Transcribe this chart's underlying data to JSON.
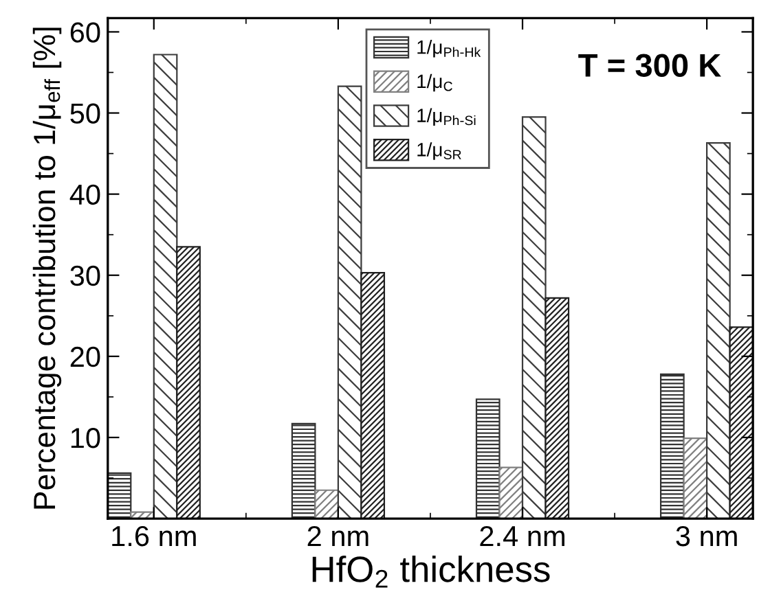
{
  "chart_data": {
    "type": "bar",
    "xlabel": "HfO$_{2}$ thickness",
    "ylabel": "Percentage contribution to 1/μ$_{eff}$ [%]",
    "categories": [
      "1.6 nm",
      "2 nm",
      "2.4 nm",
      "3 nm"
    ],
    "series": [
      {
        "name": "1/μ$_{Ph-Hk}$",
        "color": "#333333",
        "values": [
          5.6,
          11.7,
          14.7,
          17.8
        ]
      },
      {
        "name": "1/μ$_{C}$",
        "color": "#808080",
        "values": [
          0.8,
          3.5,
          6.3,
          9.9
        ]
      },
      {
        "name": "1/μ$_{Ph-Si}$",
        "color": "#3c3c3c",
        "values": [
          57.2,
          53.3,
          49.5,
          46.3
        ]
      },
      {
        "name": "1/μ$_{SR}$",
        "color": "#202020",
        "values": [
          33.5,
          30.3,
          27.2,
          23.6
        ]
      }
    ],
    "ylim": [
      0,
      61.7
    ],
    "yticks": [
      10,
      20,
      30,
      40,
      50,
      60
    ],
    "annotations": [
      "T = 300 K"
    ],
    "legend": "top",
    "grid": false
  }
}
